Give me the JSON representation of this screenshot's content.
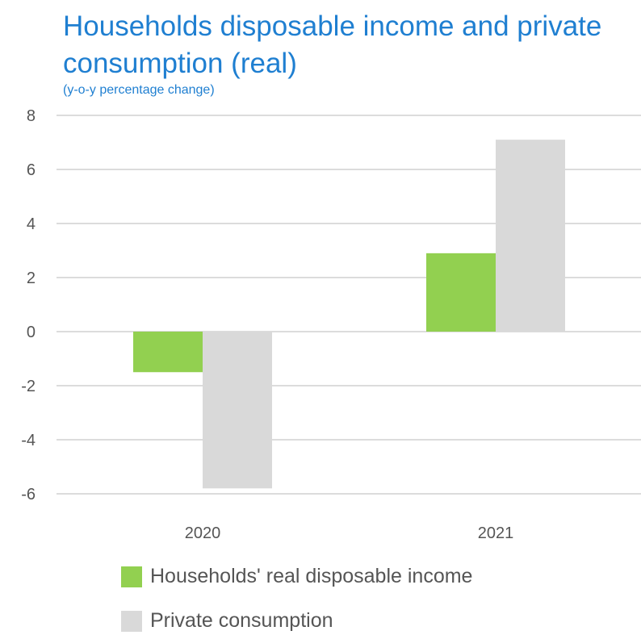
{
  "chart_data": {
    "type": "bar",
    "title": "Households disposable income and private consumption (real)",
    "subtitle": "(y-o-y percentage change)",
    "xlabel": "",
    "ylabel": "",
    "categories": [
      "2020",
      "2021"
    ],
    "series": [
      {
        "name": "Households' real disposable income",
        "values": [
          -1.5,
          2.9
        ],
        "color": "#92d050"
      },
      {
        "name": "Private consumption",
        "values": [
          -5.8,
          7.1
        ],
        "color": "#d9d9d9"
      }
    ],
    "ylim": [
      -6,
      8
    ],
    "yticks": [
      "8",
      "6",
      "4",
      "2",
      "0",
      "-2",
      "-4",
      "-6"
    ],
    "grid": true,
    "legend_position": "bottom-left"
  },
  "colors": {
    "title": "#1f7fd1",
    "gridline": "#d0d0d0",
    "tick_text": "#555555"
  }
}
